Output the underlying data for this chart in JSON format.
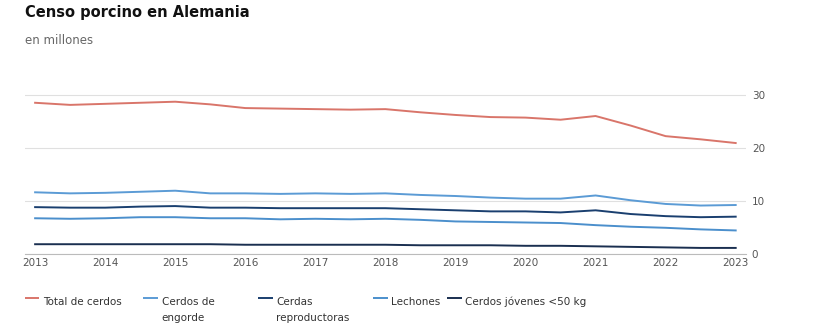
{
  "title": "Censo porcino en Alemania",
  "subtitle": "en millones",
  "title_fontsize": 10.5,
  "subtitle_fontsize": 8.5,
  "background_color": "#ffffff",
  "x_labels": [
    "2013",
    "2014",
    "2015",
    "2016",
    "2017",
    "2018",
    "2019",
    "2020",
    "2021",
    "2022",
    "2023"
  ],
  "x_values": [
    2013.0,
    2013.5,
    2014.0,
    2014.5,
    2015.0,
    2015.5,
    2016.0,
    2016.5,
    2017.0,
    2017.5,
    2018.0,
    2018.5,
    2019.0,
    2019.5,
    2020.0,
    2020.5,
    2021.0,
    2021.5,
    2022.0,
    2022.5,
    2023.0
  ],
  "series": [
    {
      "name": "Total de cerdos",
      "color": "#d9756a",
      "linewidth": 1.4,
      "values": [
        28.6,
        28.2,
        28.4,
        28.6,
        28.8,
        28.3,
        27.6,
        27.5,
        27.4,
        27.3,
        27.4,
        26.8,
        26.3,
        25.9,
        25.8,
        25.4,
        26.1,
        24.3,
        22.3,
        21.7,
        21.0
      ]
    },
    {
      "name": "Cerdos de engorde",
      "color": "#5b9bd5",
      "linewidth": 1.4,
      "values": [
        11.7,
        11.5,
        11.6,
        11.8,
        12.0,
        11.5,
        11.5,
        11.4,
        11.5,
        11.4,
        11.5,
        11.2,
        11.0,
        10.7,
        10.5,
        10.5,
        11.1,
        10.2,
        9.5,
        9.2,
        9.3
      ]
    },
    {
      "name": "Cerdas reproductoras",
      "color": "#1a3f6f",
      "linewidth": 1.4,
      "values": [
        8.9,
        8.8,
        8.8,
        9.0,
        9.1,
        8.8,
        8.8,
        8.7,
        8.7,
        8.7,
        8.7,
        8.5,
        8.3,
        8.1,
        8.1,
        7.9,
        8.3,
        7.6,
        7.2,
        7.0,
        7.1
      ]
    },
    {
      "name": "Lechones",
      "color": "#4b8fcc",
      "linewidth": 1.4,
      "values": [
        6.8,
        6.7,
        6.8,
        7.0,
        7.0,
        6.8,
        6.8,
        6.6,
        6.7,
        6.6,
        6.7,
        6.5,
        6.2,
        6.1,
        6.0,
        5.9,
        5.5,
        5.2,
        5.0,
        4.7,
        4.5
      ]
    },
    {
      "name": "Cerdos jóvenes <50 kg",
      "color": "#1a2f50",
      "linewidth": 1.4,
      "values": [
        1.9,
        1.9,
        1.9,
        1.9,
        1.9,
        1.9,
        1.8,
        1.8,
        1.8,
        1.8,
        1.8,
        1.7,
        1.7,
        1.7,
        1.6,
        1.6,
        1.5,
        1.4,
        1.3,
        1.2,
        1.2
      ]
    }
  ],
  "ylim": [
    0,
    32
  ],
  "yticks": [
    0,
    10,
    20,
    30
  ],
  "xtick_positions": [
    2013,
    2014,
    2015,
    2016,
    2017,
    2018,
    2019,
    2020,
    2021,
    2022,
    2023
  ],
  "grid_color": "#e0e0e0",
  "legend_entries": [
    {
      "label": "Total de cerdos",
      "label2": "",
      "color": "#d9756a"
    },
    {
      "label": "Cerdos de",
      "label2": "engorde",
      "color": "#5b9bd5"
    },
    {
      "label": "Cerdas",
      "label2": "reproductoras",
      "color": "#1a3f6f"
    },
    {
      "label": "Lechones",
      "label2": "",
      "color": "#4b8fcc"
    },
    {
      "label": "Cerdos jóvenes <50 kg",
      "label2": "",
      "color": "#1a2f50"
    }
  ]
}
